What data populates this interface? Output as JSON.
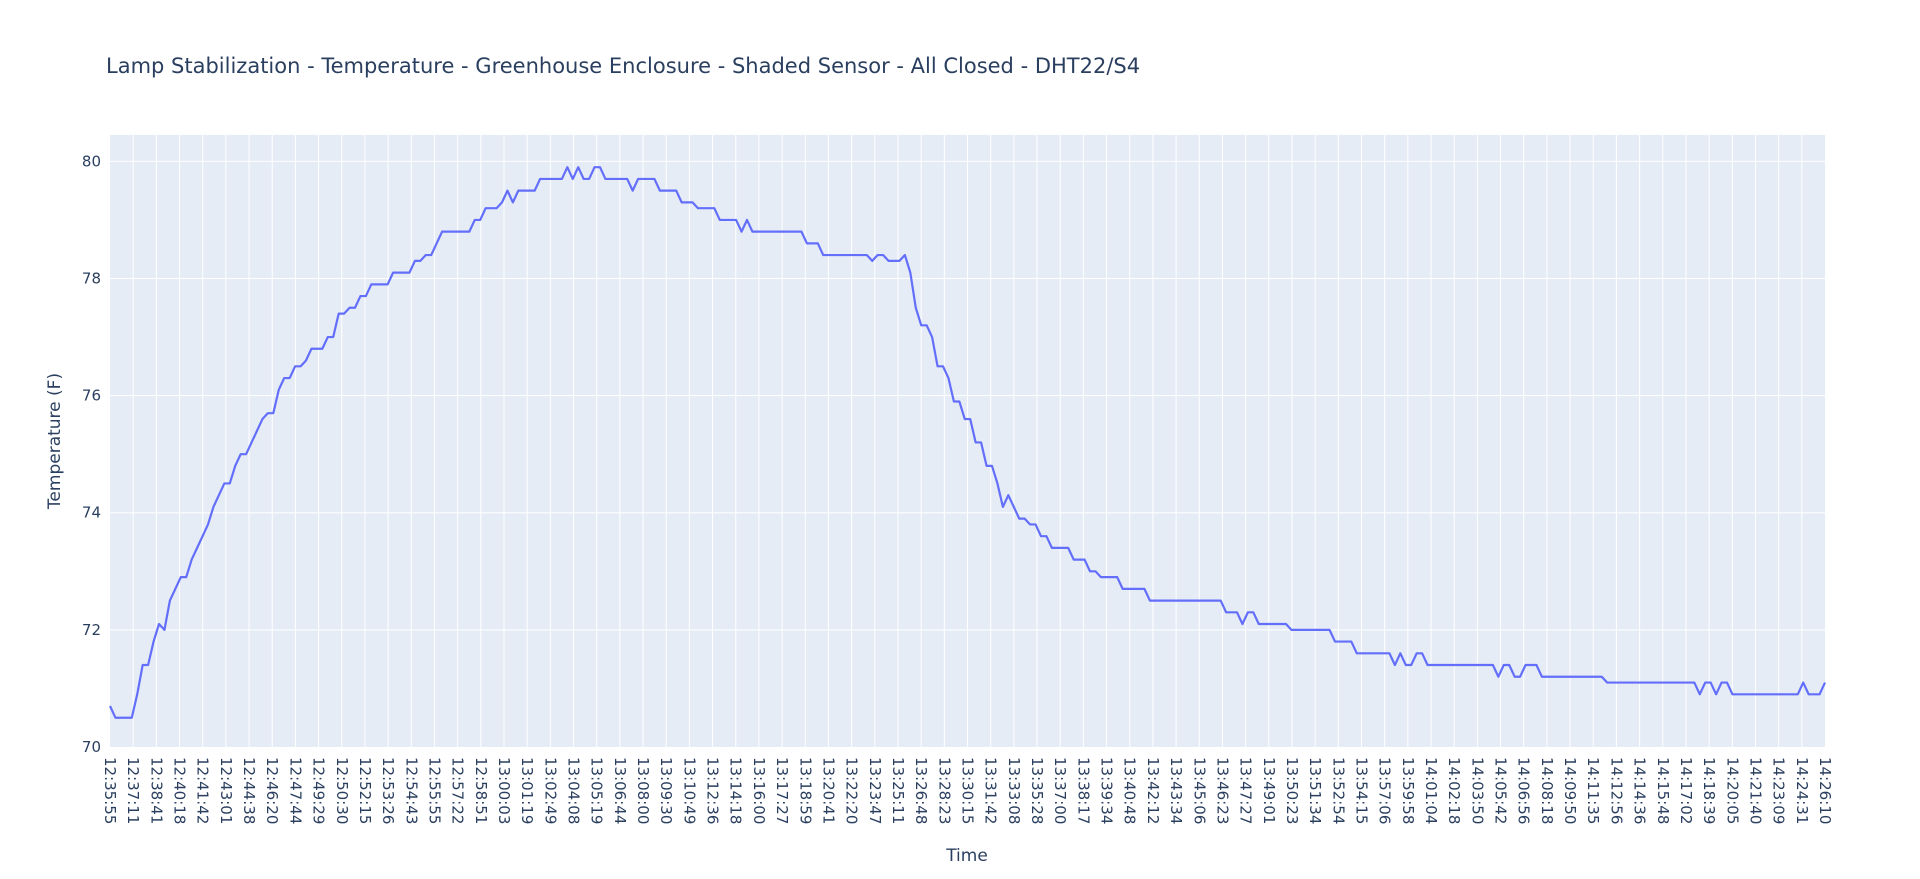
{
  "chart_data": {
    "type": "line",
    "title": "Lamp Stabilization - Temperature - Greenhouse Enclosure - Shaded Sensor - All Closed - DHT22/S4",
    "xlabel": "Time",
    "ylabel": "Temperature (F)",
    "ylim": [
      70,
      80.45
    ],
    "yticks": [
      70,
      72,
      74,
      76,
      78,
      80
    ],
    "grid": true,
    "background_color": "#e5ecf6",
    "line_color": "#636efa",
    "x_ticks": [
      "12:35:55",
      "12:37:11",
      "12:38:41",
      "12:40:18",
      "12:41:42",
      "12:43:01",
      "12:44:38",
      "12:46:20",
      "12:47:44",
      "12:49:29",
      "12:50:30",
      "12:52:15",
      "12:53:26",
      "12:54:43",
      "12:55:55",
      "12:57:22",
      "12:58:51",
      "13:00:03",
      "13:01:19",
      "13:02:49",
      "13:04:08",
      "13:05:19",
      "13:06:44",
      "13:08:00",
      "13:09:30",
      "13:10:49",
      "13:12:36",
      "13:14:18",
      "13:16:00",
      "13:17:27",
      "13:18:59",
      "13:20:41",
      "13:22:20",
      "13:23:47",
      "13:25:11",
      "13:26:48",
      "13:28:23",
      "13:30:15",
      "13:31:42",
      "13:33:08",
      "13:35:28",
      "13:37:00",
      "13:38:17",
      "13:39:34",
      "13:40:48",
      "13:42:12",
      "13:43:34",
      "13:45:06",
      "13:46:23",
      "13:47:27",
      "13:49:01",
      "13:50:23",
      "13:51:34",
      "13:52:54",
      "13:54:15",
      "13:57:06",
      "13:59:58",
      "14:01:04",
      "14:02:18",
      "14:03:50",
      "14:05:42",
      "14:06:56",
      "14:08:18",
      "14:09:50",
      "14:11:35",
      "14:12:56",
      "14:14:36",
      "14:15:48",
      "14:17:02",
      "14:18:39",
      "14:20:05",
      "14:21:40",
      "14:23:09",
      "14:24:31",
      "14:26:10"
    ],
    "series": [
      {
        "values": [
          70.7,
          70.5,
          70.5,
          70.5,
          70.5,
          70.9,
          71.4,
          71.4,
          71.8,
          72.1,
          72.0,
          72.5,
          72.7,
          72.9,
          72.9,
          73.2,
          73.4,
          73.6,
          73.8,
          74.1,
          74.3,
          74.5,
          74.5,
          74.8,
          75.0,
          75.0,
          75.2,
          75.4,
          75.6,
          75.7,
          75.7,
          76.1,
          76.3,
          76.3,
          76.5,
          76.5,
          76.6,
          76.8,
          76.8,
          76.8,
          77.0,
          77.0,
          77.4,
          77.4,
          77.5,
          77.5,
          77.7,
          77.7,
          77.9,
          77.9,
          77.9,
          77.9,
          78.1,
          78.1,
          78.1,
          78.1,
          78.3,
          78.3,
          78.4,
          78.4,
          78.6,
          78.8,
          78.8,
          78.8,
          78.8,
          78.8,
          78.8,
          79.0,
          79.0,
          79.2,
          79.2,
          79.2,
          79.3,
          79.5,
          79.3,
          79.5,
          79.5,
          79.5,
          79.5,
          79.7,
          79.7,
          79.7,
          79.7,
          79.7,
          79.9,
          79.7,
          79.9,
          79.7,
          79.7,
          79.9,
          79.9,
          79.7,
          79.7,
          79.7,
          79.7,
          79.7,
          79.5,
          79.7,
          79.7,
          79.7,
          79.7,
          79.5,
          79.5,
          79.5,
          79.5,
          79.3,
          79.3,
          79.3,
          79.2,
          79.2,
          79.2,
          79.2,
          79.0,
          79.0,
          79.0,
          79.0,
          78.8,
          79.0,
          78.8,
          78.8,
          78.8,
          78.8,
          78.8,
          78.8,
          78.8,
          78.8,
          78.8,
          78.8,
          78.6,
          78.6,
          78.6,
          78.4,
          78.4,
          78.4,
          78.4,
          78.4,
          78.4,
          78.4,
          78.4,
          78.4,
          78.3,
          78.4,
          78.4,
          78.3,
          78.3,
          78.3,
          78.4,
          78.1,
          77.5,
          77.2,
          77.2,
          77.0,
          76.5,
          76.5,
          76.3,
          75.9,
          75.9,
          75.6,
          75.6,
          75.2,
          75.2,
          74.8,
          74.8,
          74.5,
          74.1,
          74.3,
          74.1,
          73.9,
          73.9,
          73.8,
          73.8,
          73.6,
          73.6,
          73.4,
          73.4,
          73.4,
          73.4,
          73.2,
          73.2,
          73.2,
          73.0,
          73.0,
          72.9,
          72.9,
          72.9,
          72.9,
          72.7,
          72.7,
          72.7,
          72.7,
          72.7,
          72.5,
          72.5,
          72.5,
          72.5,
          72.5,
          72.5,
          72.5,
          72.5,
          72.5,
          72.5,
          72.5,
          72.5,
          72.5,
          72.5,
          72.3,
          72.3,
          72.3,
          72.1,
          72.3,
          72.3,
          72.1,
          72.1,
          72.1,
          72.1,
          72.1,
          72.1,
          72.0,
          72.0,
          72.0,
          72.0,
          72.0,
          72.0,
          72.0,
          72.0,
          71.8,
          71.8,
          71.8,
          71.8,
          71.6,
          71.6,
          71.6,
          71.6,
          71.6,
          71.6,
          71.6,
          71.4,
          71.6,
          71.4,
          71.4,
          71.6,
          71.6,
          71.4,
          71.4,
          71.4,
          71.4,
          71.4,
          71.4,
          71.4,
          71.4,
          71.4,
          71.4,
          71.4,
          71.4,
          71.4,
          71.2,
          71.4,
          71.4,
          71.2,
          71.2,
          71.4,
          71.4,
          71.4,
          71.2,
          71.2,
          71.2,
          71.2,
          71.2,
          71.2,
          71.2,
          71.2,
          71.2,
          71.2,
          71.2,
          71.2,
          71.1,
          71.1,
          71.1,
          71.1,
          71.1,
          71.1,
          71.1,
          71.1,
          71.1,
          71.1,
          71.1,
          71.1,
          71.1,
          71.1,
          71.1,
          71.1,
          71.1,
          70.9,
          71.1,
          71.1,
          70.9,
          71.1,
          71.1,
          70.9,
          70.9,
          70.9,
          70.9,
          70.9,
          70.9,
          70.9,
          70.9,
          70.9,
          70.9,
          70.9,
          70.9,
          70.9,
          71.1,
          70.9,
          70.9,
          70.9,
          71.1
        ]
      }
    ]
  }
}
